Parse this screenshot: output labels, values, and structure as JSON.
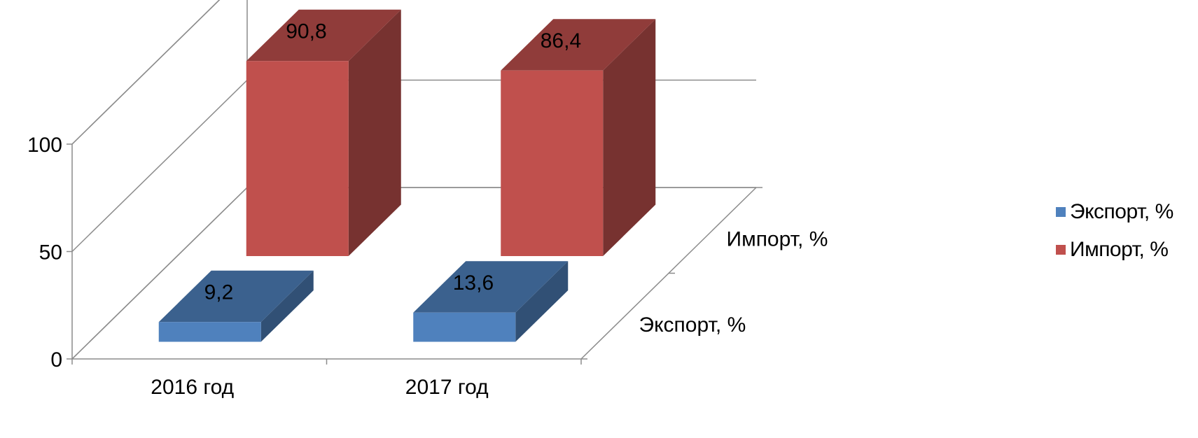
{
  "chart_data": {
    "type": "bar",
    "variant": "3d-column",
    "categories": [
      "2016 год",
      "2017 год"
    ],
    "series": [
      {
        "name": "Экспорт, %",
        "values": [
          9.2,
          13.6
        ],
        "labels": [
          "9,2",
          "13,6"
        ],
        "color": "#4F81BD"
      },
      {
        "name": "Импорт, %",
        "values": [
          90.8,
          86.4
        ],
        "labels": [
          "90,8",
          "86,4"
        ],
        "color": "#C0504D"
      }
    ],
    "depth_axis_labels": [
      "Экспорт, %",
      "Импорт, %"
    ],
    "y_ticks": [
      "0",
      "50",
      "100"
    ],
    "ylim": [
      0,
      100
    ],
    "grid": true,
    "legend_position": "right",
    "title": "",
    "xlabel": "",
    "ylabel": ""
  }
}
